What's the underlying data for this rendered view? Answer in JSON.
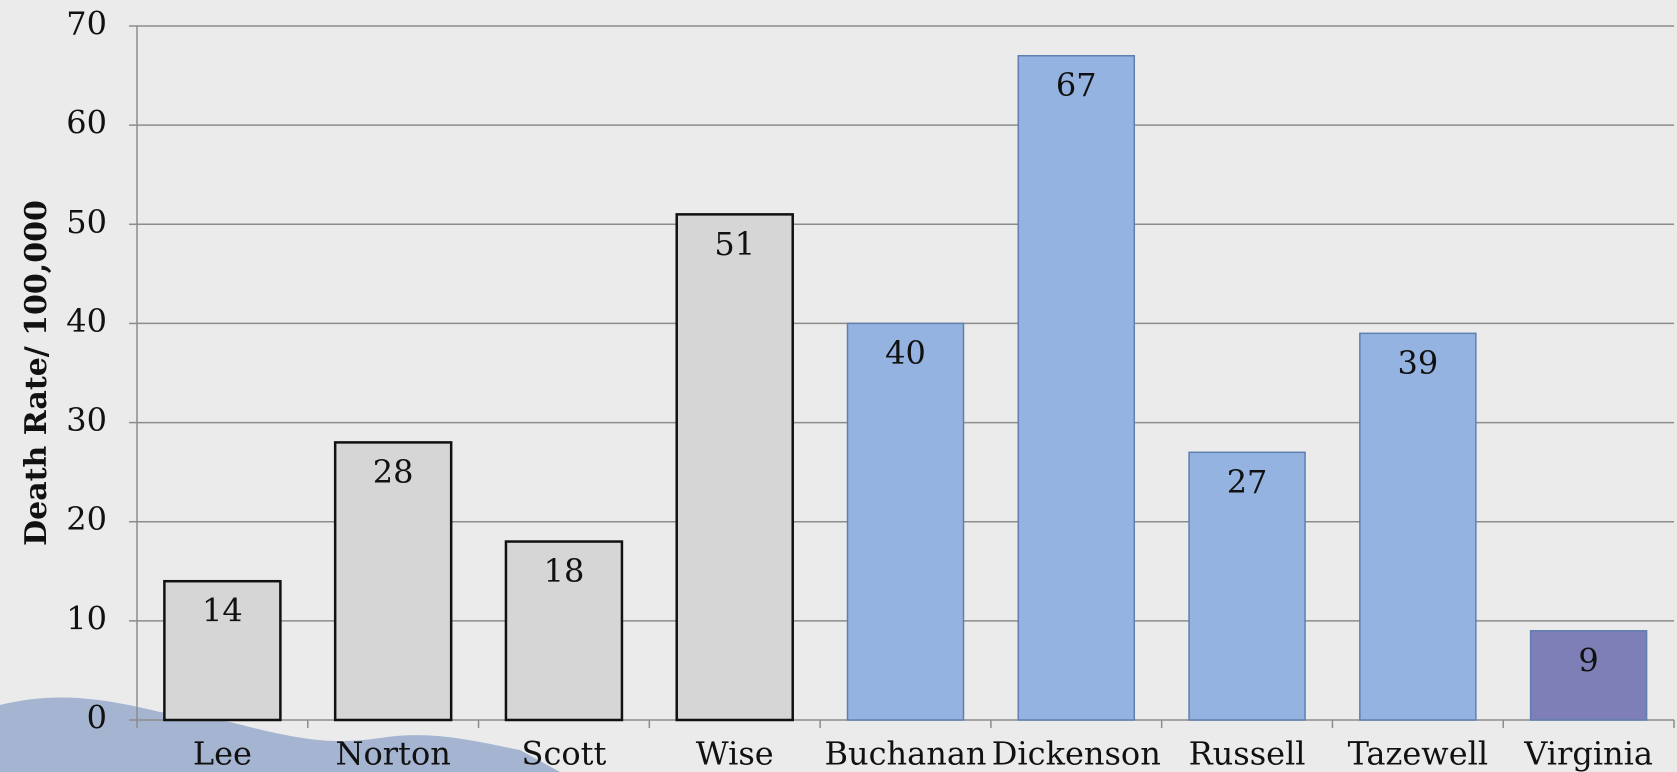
{
  "chart_data": {
    "type": "bar",
    "y_label": "Death Rate/ 100,000",
    "categories": [
      "Lee",
      "Norton",
      "Scott",
      "Wise",
      "Buchanan",
      "Dickenson",
      "Russell",
      "Tazewell",
      "Virginia"
    ],
    "values": [
      14,
      28,
      18,
      51,
      40,
      67,
      27,
      39,
      9
    ],
    "colors": [
      "#d6d6d6",
      "#d6d6d6",
      "#d6d6d6",
      "#d6d6d6",
      "#95b3e0",
      "#95b3e0",
      "#95b3e0",
      "#95b3e0",
      "#7f7fb8"
    ],
    "ylim": [
      0,
      70
    ],
    "yticks": [
      0,
      10,
      20,
      30,
      40,
      50,
      60,
      70
    ],
    "grid": true
  }
}
